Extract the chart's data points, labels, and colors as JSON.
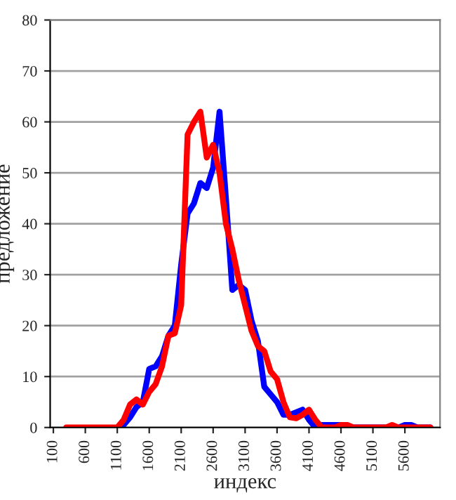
{
  "chart_data": {
    "type": "line",
    "xlabel": "индекс",
    "ylabel": "предложение",
    "x": [
      300,
      400,
      500,
      600,
      700,
      800,
      900,
      1000,
      1100,
      1200,
      1300,
      1400,
      1500,
      1600,
      1700,
      1800,
      1900,
      2000,
      2100,
      2200,
      2300,
      2400,
      2500,
      2600,
      2700,
      2800,
      2900,
      3000,
      3100,
      3200,
      3300,
      3400,
      3500,
      3600,
      3700,
      3800,
      3900,
      4000,
      4100,
      4200,
      4300,
      4400,
      4500,
      4600,
      4700,
      4800,
      4900,
      5000,
      5100,
      5200,
      5300,
      5400,
      5500,
      5600,
      5700,
      5800,
      5900,
      6000
    ],
    "series": [
      {
        "color": "#0000ff",
        "values": [
          null,
          null,
          null,
          null,
          null,
          null,
          null,
          null,
          0,
          0.5,
          2,
          4,
          5,
          11.5,
          12,
          14,
          18,
          20,
          32,
          42,
          44,
          48,
          47,
          51,
          62,
          45,
          27,
          28,
          27,
          21,
          17,
          8,
          6.5,
          5,
          2.5,
          2.5,
          3,
          3.5,
          1.5,
          0,
          0.5,
          0.5,
          0.5,
          0.5,
          0,
          0,
          0,
          0,
          0,
          0,
          0,
          0,
          0,
          0.5,
          0.5,
          0,
          0,
          0
        ]
      },
      {
        "color": "#ff0000",
        "values": [
          0,
          0,
          0,
          0,
          0,
          0,
          0,
          0,
          0,
          1.5,
          4.5,
          5.5,
          4.5,
          7,
          8.5,
          12,
          18,
          18.5,
          24,
          57.5,
          60,
          62,
          53,
          55.5,
          50,
          40,
          35,
          29,
          24,
          19,
          16,
          15,
          11,
          9.5,
          5,
          2,
          1.8,
          2.5,
          3.5,
          1.5,
          0,
          0,
          0,
          0.5,
          0.5,
          0,
          0,
          0,
          0,
          0,
          0,
          0.5,
          0,
          0,
          0,
          0,
          0,
          0
        ]
      }
    ],
    "xlim": [
      50,
      6150
    ],
    "xticks": [
      100,
      600,
      1100,
      1600,
      2100,
      2600,
      3100,
      3600,
      4100,
      4600,
      5100,
      5600
    ],
    "ylim": [
      0,
      80
    ],
    "yticks": [
      0,
      10,
      20,
      30,
      40,
      50,
      60,
      70,
      80
    ],
    "grid": "y",
    "line_style": "solid",
    "marker": "none"
  }
}
